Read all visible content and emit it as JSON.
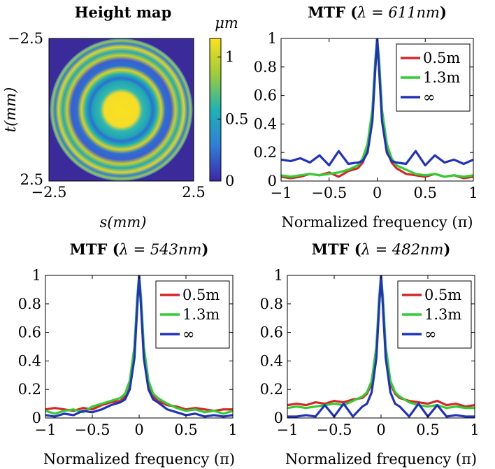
{
  "heightmap": {
    "title": "Height map",
    "colorbar_label": "μm",
    "colorbar_ticks": [
      {
        "label": "1",
        "value": 1.0
      },
      {
        "label": "0.5",
        "value": 0.5
      },
      {
        "label": "0",
        "value": 0.0
      }
    ],
    "x_ticks": [
      {
        "label": "−2.5",
        "value": -2.5
      },
      {
        "label": "2.5",
        "value": 2.5
      }
    ],
    "y_ticks": [
      {
        "label": "−2.5",
        "value": -2.5
      },
      {
        "label": "2.5",
        "value": 2.5
      }
    ],
    "xlabel": "s(mm)",
    "ylabel": "t(mm)",
    "colors": {
      "background": "#3a2a9a",
      "low": "#2c6fd1",
      "mid": "#22a3b5",
      "high": "#f8e21e"
    }
  },
  "chart_data": [
    {
      "type": "heatmap",
      "title": "Height map",
      "xlabel": "s(mm)",
      "ylabel": "t(mm)",
      "xlim": [
        -2.5,
        2.5
      ],
      "ylim": [
        -2.5,
        2.5
      ],
      "colorbar_range": [
        0,
        1.15
      ],
      "colorbar_unit": "μm",
      "radial_profile": {
        "r": [
          0,
          0.6,
          0.9,
          1.05,
          1.3,
          1.6,
          1.85,
          2.05,
          2.25,
          2.4,
          2.5
        ],
        "height": [
          1.1,
          1.05,
          0.75,
          0.55,
          0.7,
          0.45,
          0.8,
          0.5,
          0.85,
          0.55,
          0.0
        ]
      }
    },
    {
      "type": "line",
      "title_prefix": "MTF (",
      "title_math": "λ = 611nm",
      "title_suffix": ")",
      "xlabel": "Normalized frequency (π)",
      "ylabel": "",
      "xlim": [
        -1,
        1
      ],
      "ylim": [
        0,
        1
      ],
      "x_ticks": [
        "−1",
        "−0.5",
        "0",
        "0.5",
        "1"
      ],
      "y_ticks": [
        "0",
        "0.2",
        "0.4",
        "0.6",
        "0.8",
        "1"
      ],
      "legend_position": "top-right",
      "x": [
        -1,
        -0.9,
        -0.8,
        -0.7,
        -0.6,
        -0.5,
        -0.4,
        -0.3,
        -0.2,
        -0.15,
        -0.1,
        -0.05,
        -0.02,
        0,
        0.02,
        0.05,
        0.1,
        0.15,
        0.2,
        0.3,
        0.4,
        0.5,
        0.6,
        0.7,
        0.8,
        0.9,
        1
      ],
      "series": [
        {
          "name": "0.5m",
          "color": "#d62728",
          "values": [
            0.03,
            0.02,
            0.03,
            0.05,
            0.04,
            0.06,
            0.03,
            0.07,
            0.09,
            0.13,
            0.22,
            0.45,
            0.8,
            1.0,
            0.8,
            0.45,
            0.22,
            0.13,
            0.09,
            0.05,
            0.04,
            0.03,
            0.05,
            0.03,
            0.04,
            0.02,
            0.03
          ]
        },
        {
          "name": "1.3m",
          "color": "#33cc33",
          "values": [
            0.04,
            0.03,
            0.04,
            0.05,
            0.04,
            0.05,
            0.06,
            0.08,
            0.11,
            0.16,
            0.26,
            0.5,
            0.85,
            1.0,
            0.85,
            0.5,
            0.26,
            0.16,
            0.11,
            0.08,
            0.05,
            0.04,
            0.05,
            0.03,
            0.04,
            0.03,
            0.04
          ]
        },
        {
          "name": "∞",
          "color": "#2233bb",
          "values": [
            0.15,
            0.14,
            0.16,
            0.13,
            0.18,
            0.11,
            0.21,
            0.12,
            0.13,
            0.14,
            0.2,
            0.42,
            0.78,
            1.0,
            0.78,
            0.42,
            0.2,
            0.14,
            0.13,
            0.12,
            0.21,
            0.11,
            0.18,
            0.13,
            0.15,
            0.12,
            0.15
          ]
        }
      ]
    },
    {
      "type": "line",
      "title_prefix": "MTF (",
      "title_math": "λ = 543nm",
      "title_suffix": ")",
      "xlabel": "Normalized frequency (π)",
      "ylabel": "",
      "xlim": [
        -1,
        1
      ],
      "ylim": [
        0,
        1
      ],
      "x_ticks": [
        "−1",
        "−0.5",
        "0",
        "0.5",
        "1"
      ],
      "y_ticks": [
        "0",
        "0.2",
        "0.4",
        "0.6",
        "0.8",
        "1"
      ],
      "legend_position": "top-right",
      "x": [
        -1,
        -0.9,
        -0.8,
        -0.7,
        -0.6,
        -0.5,
        -0.4,
        -0.3,
        -0.2,
        -0.15,
        -0.1,
        -0.05,
        -0.02,
        0,
        0.02,
        0.05,
        0.1,
        0.15,
        0.2,
        0.3,
        0.4,
        0.5,
        0.6,
        0.7,
        0.8,
        0.9,
        1
      ],
      "series": [
        {
          "name": "0.5m",
          "color": "#d62728",
          "values": [
            0.06,
            0.07,
            0.06,
            0.05,
            0.07,
            0.06,
            0.09,
            0.11,
            0.12,
            0.15,
            0.22,
            0.45,
            0.8,
            1.0,
            0.8,
            0.45,
            0.22,
            0.15,
            0.12,
            0.09,
            0.08,
            0.06,
            0.07,
            0.06,
            0.05,
            0.06,
            0.06
          ]
        },
        {
          "name": "1.3m",
          "color": "#33cc33",
          "values": [
            0.05,
            0.03,
            0.05,
            0.06,
            0.04,
            0.08,
            0.1,
            0.12,
            0.14,
            0.17,
            0.26,
            0.5,
            0.85,
            1.0,
            0.85,
            0.5,
            0.26,
            0.17,
            0.14,
            0.1,
            0.07,
            0.05,
            0.06,
            0.04,
            0.05,
            0.03,
            0.05
          ]
        },
        {
          "name": "∞",
          "color": "#2233bb",
          "values": [
            0.02,
            0.01,
            0.03,
            0.02,
            0.05,
            0.04,
            0.06,
            0.09,
            0.11,
            0.13,
            0.2,
            0.42,
            0.78,
            1.0,
            0.78,
            0.42,
            0.2,
            0.13,
            0.11,
            0.06,
            0.04,
            0.02,
            0.03,
            0.01,
            0.02,
            0.01,
            0.02
          ]
        }
      ]
    },
    {
      "type": "line",
      "title_prefix": "MTF (",
      "title_math": "λ = 482nm",
      "title_suffix": ")",
      "xlabel": "Normalized frequency (π)",
      "ylabel": "",
      "xlim": [
        -1,
        1
      ],
      "ylim": [
        0,
        1
      ],
      "x_ticks": [
        "−1",
        "−0.5",
        "0",
        "0.5",
        "1"
      ],
      "y_ticks": [
        "0",
        "0.2",
        "0.4",
        "0.6",
        "0.8",
        "1"
      ],
      "legend_position": "top-right",
      "x": [
        -1,
        -0.9,
        -0.8,
        -0.7,
        -0.6,
        -0.5,
        -0.4,
        -0.3,
        -0.2,
        -0.15,
        -0.1,
        -0.05,
        -0.02,
        0,
        0.02,
        0.05,
        0.1,
        0.15,
        0.2,
        0.3,
        0.4,
        0.5,
        0.6,
        0.7,
        0.8,
        0.9,
        1
      ],
      "series": [
        {
          "name": "0.5m",
          "color": "#d62728",
          "values": [
            0.09,
            0.1,
            0.09,
            0.11,
            0.1,
            0.12,
            0.11,
            0.13,
            0.14,
            0.17,
            0.24,
            0.46,
            0.8,
            1.0,
            0.8,
            0.46,
            0.24,
            0.17,
            0.14,
            0.12,
            0.11,
            0.1,
            0.12,
            0.09,
            0.1,
            0.08,
            0.09
          ]
        },
        {
          "name": "1.3m",
          "color": "#33cc33",
          "values": [
            0.07,
            0.08,
            0.07,
            0.08,
            0.09,
            0.1,
            0.09,
            0.12,
            0.15,
            0.18,
            0.26,
            0.5,
            0.85,
            1.0,
            0.85,
            0.5,
            0.26,
            0.18,
            0.15,
            0.11,
            0.09,
            0.08,
            0.09,
            0.07,
            0.08,
            0.07,
            0.07
          ]
        },
        {
          "name": "∞",
          "color": "#2233bb",
          "values": [
            0.01,
            0.01,
            0.02,
            0.01,
            0.09,
            0.01,
            0.1,
            0.01,
            0.08,
            0.1,
            0.18,
            0.42,
            0.78,
            1.0,
            0.78,
            0.42,
            0.18,
            0.1,
            0.08,
            0.01,
            0.1,
            0.01,
            0.09,
            0.01,
            0.02,
            0.01,
            0.01
          ]
        }
      ]
    }
  ]
}
